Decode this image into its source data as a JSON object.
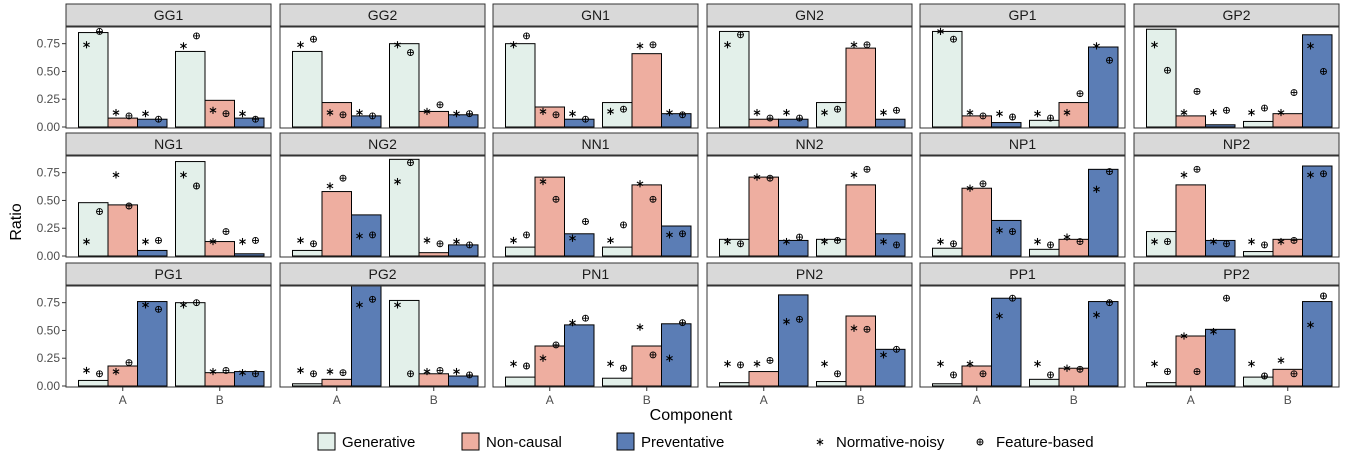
{
  "chart_data": {
    "type": "bar",
    "xlabel": "Component",
    "ylabel": "Ratio",
    "categories": [
      "A",
      "B"
    ],
    "yticks": [
      "0.00",
      "0.25",
      "0.50",
      "0.75"
    ],
    "ylim": [
      0,
      0.9
    ],
    "legend": {
      "position": "bottom",
      "items": [
        {
          "label": "Generative",
          "kind": "bar",
          "color": "#e3f0ea"
        },
        {
          "label": "Non-causal",
          "kind": "bar",
          "color": "#eeaea0"
        },
        {
          "label": "Preventative",
          "kind": "bar",
          "color": "#5b7db5"
        },
        {
          "label": "Normative-noisy",
          "kind": "star"
        },
        {
          "label": "Feature-based",
          "kind": "circle-plus"
        }
      ]
    },
    "colors": {
      "Generative": "#e3f0ea",
      "Non-causal": "#eeaea0",
      "Preventative": "#5b7db5",
      "strip": "#d9d9d9"
    },
    "panels": [
      {
        "name": "GG1",
        "bars": {
          "A": [
            0.85,
            0.08,
            0.07
          ],
          "B": [
            0.68,
            0.24,
            0.08
          ]
        },
        "star": {
          "A": [
            0.74,
            0.13,
            0.12
          ],
          "B": [
            0.73,
            0.15,
            0.12
          ]
        },
        "plus": {
          "A": [
            0.86,
            0.1,
            0.07
          ],
          "B": [
            0.82,
            0.12,
            0.07
          ]
        }
      },
      {
        "name": "GG2",
        "bars": {
          "A": [
            0.68,
            0.22,
            0.1
          ],
          "B": [
            0.75,
            0.14,
            0.11
          ]
        },
        "star": {
          "A": [
            0.74,
            0.13,
            0.13
          ],
          "B": [
            0.74,
            0.14,
            0.12
          ]
        },
        "plus": {
          "A": [
            0.79,
            0.11,
            0.1
          ],
          "B": [
            0.67,
            0.2,
            0.12
          ]
        }
      },
      {
        "name": "GN1",
        "bars": {
          "A": [
            0.75,
            0.18,
            0.07
          ],
          "B": [
            0.22,
            0.66,
            0.12
          ]
        },
        "star": {
          "A": [
            0.74,
            0.14,
            0.12
          ],
          "B": [
            0.14,
            0.73,
            0.13
          ]
        },
        "plus": {
          "A": [
            0.82,
            0.11,
            0.07
          ],
          "B": [
            0.16,
            0.74,
            0.11
          ]
        }
      },
      {
        "name": "GN2",
        "bars": {
          "A": [
            0.86,
            0.07,
            0.07
          ],
          "B": [
            0.22,
            0.71,
            0.07
          ]
        },
        "star": {
          "A": [
            0.74,
            0.13,
            0.13
          ],
          "B": [
            0.13,
            0.74,
            0.13
          ]
        },
        "plus": {
          "A": [
            0.83,
            0.08,
            0.08
          ],
          "B": [
            0.16,
            0.74,
            0.15
          ]
        }
      },
      {
        "name": "GP1",
        "bars": {
          "A": [
            0.86,
            0.1,
            0.04
          ],
          "B": [
            0.06,
            0.22,
            0.72
          ]
        },
        "star": {
          "A": [
            0.86,
            0.13,
            0.12
          ],
          "B": [
            0.12,
            0.13,
            0.73
          ]
        },
        "plus": {
          "A": [
            0.79,
            0.1,
            0.09
          ],
          "B": [
            0.08,
            0.3,
            0.6
          ]
        }
      },
      {
        "name": "GP2",
        "bars": {
          "A": [
            0.88,
            0.1,
            0.02
          ],
          "B": [
            0.05,
            0.12,
            0.83
          ]
        },
        "star": {
          "A": [
            0.74,
            0.13,
            0.13
          ],
          "B": [
            0.13,
            0.13,
            0.73
          ]
        },
        "plus": {
          "A": [
            0.51,
            0.32,
            0.15
          ],
          "B": [
            0.17,
            0.31,
            0.5
          ]
        }
      },
      {
        "name": "NG1",
        "bars": {
          "A": [
            0.48,
            0.46,
            0.05
          ],
          "B": [
            0.85,
            0.13,
            0.02
          ]
        },
        "star": {
          "A": [
            0.13,
            0.73,
            0.13
          ],
          "B": [
            0.73,
            0.13,
            0.13
          ]
        },
        "plus": {
          "A": [
            0.4,
            0.45,
            0.14
          ],
          "B": [
            0.63,
            0.22,
            0.14
          ]
        }
      },
      {
        "name": "NG2",
        "bars": {
          "A": [
            0.05,
            0.58,
            0.37
          ],
          "B": [
            0.87,
            0.03,
            0.1
          ]
        },
        "star": {
          "A": [
            0.14,
            0.63,
            0.18
          ],
          "B": [
            0.67,
            0.14,
            0.13
          ]
        },
        "plus": {
          "A": [
            0.11,
            0.7,
            0.19
          ],
          "B": [
            0.84,
            0.11,
            0.1
          ]
        }
      },
      {
        "name": "NN1",
        "bars": {
          "A": [
            0.08,
            0.71,
            0.2
          ],
          "B": [
            0.08,
            0.64,
            0.27
          ]
        },
        "star": {
          "A": [
            0.14,
            0.67,
            0.16
          ],
          "B": [
            0.14,
            0.65,
            0.19
          ]
        },
        "plus": {
          "A": [
            0.19,
            0.51,
            0.31
          ],
          "B": [
            0.28,
            0.51,
            0.2
          ]
        }
      },
      {
        "name": "NN2",
        "bars": {
          "A": [
            0.15,
            0.71,
            0.14
          ],
          "B": [
            0.15,
            0.64,
            0.2
          ]
        },
        "star": {
          "A": [
            0.13,
            0.71,
            0.13
          ],
          "B": [
            0.13,
            0.73,
            0.13
          ]
        },
        "plus": {
          "A": [
            0.11,
            0.7,
            0.17
          ],
          "B": [
            0.14,
            0.78,
            0.1
          ]
        }
      },
      {
        "name": "NP1",
        "bars": {
          "A": [
            0.07,
            0.61,
            0.32
          ],
          "B": [
            0.06,
            0.15,
            0.78
          ]
        },
        "star": {
          "A": [
            0.13,
            0.61,
            0.23
          ],
          "B": [
            0.13,
            0.17,
            0.6
          ]
        },
        "plus": {
          "A": [
            0.11,
            0.65,
            0.22
          ],
          "B": [
            0.1,
            0.13,
            0.76
          ]
        }
      },
      {
        "name": "NP2",
        "bars": {
          "A": [
            0.22,
            0.64,
            0.14
          ],
          "B": [
            0.04,
            0.15,
            0.81
          ]
        },
        "star": {
          "A": [
            0.13,
            0.73,
            0.13
          ],
          "B": [
            0.13,
            0.13,
            0.73
          ]
        },
        "plus": {
          "A": [
            0.13,
            0.78,
            0.11
          ],
          "B": [
            0.1,
            0.14,
            0.74
          ]
        }
      },
      {
        "name": "PG1",
        "bars": {
          "A": [
            0.05,
            0.18,
            0.76
          ],
          "B": [
            0.75,
            0.12,
            0.13
          ]
        },
        "star": {
          "A": [
            0.14,
            0.13,
            0.73
          ],
          "B": [
            0.73,
            0.13,
            0.12
          ]
        },
        "plus": {
          "A": [
            0.11,
            0.21,
            0.69
          ],
          "B": [
            0.75,
            0.14,
            0.11
          ]
        }
      },
      {
        "name": "PG2",
        "bars": {
          "A": [
            0.02,
            0.06,
            0.9
          ],
          "B": [
            0.77,
            0.11,
            0.09
          ]
        },
        "star": {
          "A": [
            0.14,
            0.13,
            0.73
          ],
          "B": [
            0.73,
            0.13,
            0.13
          ]
        },
        "plus": {
          "A": [
            0.11,
            0.12,
            0.78
          ],
          "B": [
            0.11,
            0.14,
            0.1
          ]
        }
      },
      {
        "name": "PN1",
        "bars": {
          "A": [
            0.08,
            0.36,
            0.55
          ],
          "B": [
            0.07,
            0.36,
            0.56
          ]
        },
        "star": {
          "A": [
            0.2,
            0.25,
            0.57
          ],
          "B": [
            0.2,
            0.53,
            0.25
          ]
        },
        "plus": {
          "A": [
            0.18,
            0.37,
            0.61
          ],
          "B": [
            0.16,
            0.28,
            0.57
          ]
        }
      },
      {
        "name": "PN2",
        "bars": {
          "A": [
            0.03,
            0.13,
            0.82
          ],
          "B": [
            0.04,
            0.63,
            0.33
          ]
        },
        "star": {
          "A": [
            0.2,
            0.2,
            0.58
          ],
          "B": [
            0.2,
            0.52,
            0.28
          ]
        },
        "plus": {
          "A": [
            0.19,
            0.23,
            0.6
          ],
          "B": [
            0.11,
            0.51,
            0.33
          ]
        }
      },
      {
        "name": "PP1",
        "bars": {
          "A": [
            0.02,
            0.18,
            0.79
          ],
          "B": [
            0.06,
            0.16,
            0.76
          ]
        },
        "star": {
          "A": [
            0.2,
            0.2,
            0.63
          ],
          "B": [
            0.2,
            0.16,
            0.64
          ]
        },
        "plus": {
          "A": [
            0.1,
            0.11,
            0.79
          ],
          "B": [
            0.1,
            0.15,
            0.75
          ]
        }
      },
      {
        "name": "PP2",
        "bars": {
          "A": [
            0.03,
            0.45,
            0.51
          ],
          "B": [
            0.08,
            0.15,
            0.76
          ]
        },
        "star": {
          "A": [
            0.2,
            0.45,
            0.49
          ],
          "B": [
            0.2,
            0.23,
            0.55
          ]
        },
        "plus": {
          "A": [
            0.13,
            0.13,
            0.79
          ],
          "B": [
            0.09,
            0.11,
            0.81
          ]
        }
      }
    ]
  }
}
